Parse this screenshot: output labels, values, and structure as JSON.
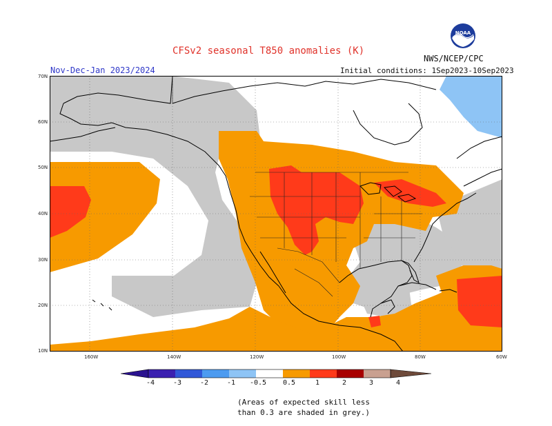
{
  "header": {
    "title": "CFSv2 seasonal T850 anomalies (K)",
    "agency": "NWS/NCEP/CPC",
    "period": "Nov-Dec-Jan 2023/2024",
    "init_conditions": "Initial conditions: 1Sep2023-10Sep2023"
  },
  "logo": {
    "text": "NOAA"
  },
  "axes": {
    "lat_ticks": [
      "70N",
      "60N",
      "50N",
      "40N",
      "30N",
      "20N",
      "10N"
    ],
    "lon_ticks": [
      "160W",
      "140W",
      "120W",
      "100W",
      "80W",
      "60W"
    ]
  },
  "colorbar": {
    "labels": [
      "-4",
      "-3",
      "-2",
      "-1",
      "-0.5",
      "0.5",
      "1",
      "2",
      "3",
      "4"
    ],
    "colors": [
      "#3b20b0",
      "#3158d8",
      "#4c9bf0",
      "#8ec4f5",
      "#ffffff",
      "#f79a00",
      "#ff3a1a",
      "#a80000",
      "#c9a090",
      "#6e4a3a"
    ]
  },
  "map": {
    "colors": {
      "ocean": "#ffffff",
      "grey_skill": "#c8c8c8",
      "warm_05_1": "#f79a00",
      "warm_1_2": "#ff3a1a",
      "cold": "#8ec4f5"
    }
  },
  "footnote": {
    "line1": "(Areas of expected skill less",
    "line2": "than 0.3 are shaded in grey.)"
  }
}
